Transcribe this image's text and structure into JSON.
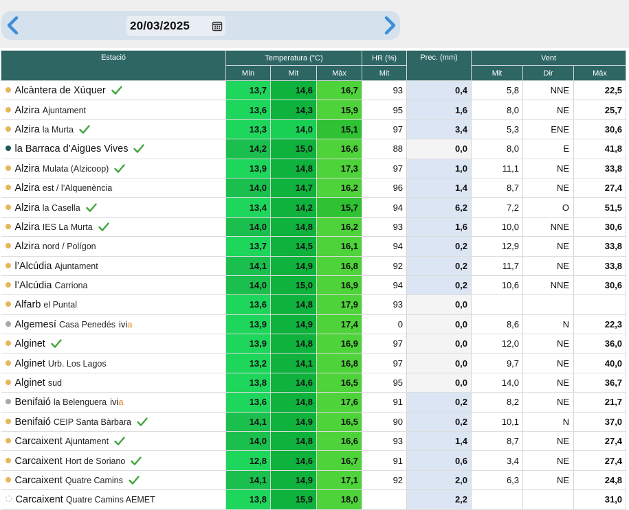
{
  "date": "20/03/2025",
  "headers": {
    "station": "Estació",
    "temperature": "Temperatura (°C)",
    "hr": "HR (%)",
    "prec": "Prec. (mm)",
    "wind": "Vent",
    "min": "Mín",
    "mit": "Mit",
    "max": "Màx",
    "hr_mit": "Mit",
    "wind_mit": "Mit",
    "wind_dir": "Dir",
    "wind_max": "Màx"
  },
  "rows": [
    {
      "name": "Alcàntera de Xúquer",
      "sub": "",
      "dot": "yellow",
      "check": true,
      "ivia": false,
      "tmin": "13,7",
      "tmit": "14,6",
      "tmax": "16,7",
      "hr": "93",
      "prec": "0,4",
      "wmit": "5,8",
      "wdir": "NNE",
      "wmax": "22,5"
    },
    {
      "name": "Alzira",
      "sub": "Ajuntament",
      "dot": "yellow",
      "check": false,
      "ivia": false,
      "tmin": "13,6",
      "tmit": "14,3",
      "tmax": "15,9",
      "hr": "95",
      "prec": "1,6",
      "wmit": "8,0",
      "wdir": "NE",
      "wmax": "25,7"
    },
    {
      "name": "Alzira",
      "sub": "la Murta",
      "dot": "yellow",
      "check": true,
      "ivia": false,
      "tmin": "13,3",
      "tmit": "14,0",
      "tmax": "15,1",
      "hr": "97",
      "prec": "3,4",
      "wmit": "5,3",
      "wdir": "ENE",
      "wmax": "30,6"
    },
    {
      "name": "la Barraca d’Aigües Vives",
      "sub": "",
      "dot": "teal",
      "check": true,
      "ivia": false,
      "tmin": "14,2",
      "tmit": "15,0",
      "tmax": "16,6",
      "hr": "88",
      "prec": "0,0",
      "wmit": "8,0",
      "wdir": "E",
      "wmax": "41,8"
    },
    {
      "name": "Alzira",
      "sub": "Mulata (Alzicoop)",
      "dot": "yellow",
      "check": true,
      "ivia": false,
      "tmin": "13,9",
      "tmit": "14,8",
      "tmax": "17,3",
      "hr": "97",
      "prec": "1,0",
      "wmit": "11,1",
      "wdir": "NE",
      "wmax": "33,8"
    },
    {
      "name": "Alzira",
      "sub": "est / l’Alquenència",
      "dot": "yellow",
      "check": false,
      "ivia": false,
      "tmin": "14,0",
      "tmit": "14,7",
      "tmax": "16,2",
      "hr": "96",
      "prec": "1,4",
      "wmit": "8,7",
      "wdir": "NE",
      "wmax": "27,4"
    },
    {
      "name": "Alzira",
      "sub": "la Casella",
      "dot": "yellow",
      "check": true,
      "ivia": false,
      "tmin": "13,4",
      "tmit": "14,2",
      "tmax": "15,7",
      "hr": "94",
      "prec": "6,2",
      "wmit": "7,2",
      "wdir": "O",
      "wmax": "51,5"
    },
    {
      "name": "Alzira",
      "sub": "IES La Murta",
      "dot": "yellow",
      "check": true,
      "ivia": false,
      "tmin": "14,0",
      "tmit": "14,8",
      "tmax": "16,2",
      "hr": "93",
      "prec": "1,6",
      "wmit": "10,0",
      "wdir": "NNE",
      "wmax": "30,6"
    },
    {
      "name": "Alzira",
      "sub": "nord / Polígon",
      "dot": "yellow",
      "check": false,
      "ivia": false,
      "tmin": "13,7",
      "tmit": "14,5",
      "tmax": "16,1",
      "hr": "94",
      "prec": "0,2",
      "wmit": "12,9",
      "wdir": "NE",
      "wmax": "33,8"
    },
    {
      "name": "l’Alcúdia",
      "sub": "Ajuntament",
      "dot": "yellow",
      "check": false,
      "ivia": false,
      "tmin": "14,1",
      "tmit": "14,9",
      "tmax": "16,8",
      "hr": "92",
      "prec": "0,2",
      "wmit": "11,7",
      "wdir": "NE",
      "wmax": "33,8"
    },
    {
      "name": "l’Alcúdia",
      "sub": "Carriona",
      "dot": "yellow",
      "check": false,
      "ivia": false,
      "tmin": "14,0",
      "tmit": "15,0",
      "tmax": "16,9",
      "hr": "94",
      "prec": "0,2",
      "wmit": "10,6",
      "wdir": "NNE",
      "wmax": "30,6"
    },
    {
      "name": "Alfarb",
      "sub": "el Puntal",
      "dot": "yellow",
      "check": false,
      "ivia": false,
      "tmin": "13,6",
      "tmit": "14,8",
      "tmax": "17,9",
      "hr": "93",
      "prec": "0,0",
      "wmit": "",
      "wdir": "",
      "wmax": ""
    },
    {
      "name": "Algemesí",
      "sub": "Casa Penedés",
      "dot": "grey",
      "check": false,
      "ivia": true,
      "tmin": "13,9",
      "tmit": "14,9",
      "tmax": "17,4",
      "hr": "0",
      "prec": "0,0",
      "wmit": "8,6",
      "wdir": "N",
      "wmax": "22,3"
    },
    {
      "name": "Alginet",
      "sub": "",
      "dot": "yellow",
      "check": true,
      "ivia": false,
      "tmin": "13,9",
      "tmit": "14,8",
      "tmax": "16,9",
      "hr": "97",
      "prec": "0,0",
      "wmit": "12,0",
      "wdir": "NE",
      "wmax": "36,0"
    },
    {
      "name": "Alginet",
      "sub": "Urb. Los Lagos",
      "dot": "yellow",
      "check": false,
      "ivia": false,
      "tmin": "13,2",
      "tmit": "14,1",
      "tmax": "16,8",
      "hr": "97",
      "prec": "0,0",
      "wmit": "9,7",
      "wdir": "NE",
      "wmax": "40,0"
    },
    {
      "name": "Alginet",
      "sub": "sud",
      "dot": "yellow",
      "check": false,
      "ivia": false,
      "tmin": "13,8",
      "tmit": "14,6",
      "tmax": "16,5",
      "hr": "95",
      "prec": "0,0",
      "wmit": "14,0",
      "wdir": "NE",
      "wmax": "36,7"
    },
    {
      "name": "Benifaió",
      "sub": "la Belenguera",
      "dot": "grey",
      "check": false,
      "ivia": true,
      "tmin": "13,6",
      "tmit": "14,8",
      "tmax": "17,6",
      "hr": "91",
      "prec": "0,2",
      "wmit": "8,2",
      "wdir": "NE",
      "wmax": "21,7"
    },
    {
      "name": "Benifaió",
      "sub": "CEIP Santa Bàrbara",
      "dot": "yellow",
      "check": true,
      "ivia": false,
      "tmin": "14,1",
      "tmit": "14,9",
      "tmax": "16,5",
      "hr": "90",
      "prec": "0,2",
      "wmit": "10,1",
      "wdir": "N",
      "wmax": "37,0"
    },
    {
      "name": "Carcaixent",
      "sub": "Ajuntament",
      "dot": "yellow",
      "check": true,
      "ivia": false,
      "tmin": "14,0",
      "tmit": "14,8",
      "tmax": "16,6",
      "hr": "93",
      "prec": "1,4",
      "wmit": "8,7",
      "wdir": "NE",
      "wmax": "27,4"
    },
    {
      "name": "Carcaixent",
      "sub": "Hort de Soriano",
      "dot": "yellow",
      "check": true,
      "ivia": false,
      "tmin": "12,8",
      "tmit": "14,6",
      "tmax": "16,7",
      "hr": "91",
      "prec": "0,6",
      "wmit": "3,4",
      "wdir": "NE",
      "wmax": "27,4"
    },
    {
      "name": "Carcaixent",
      "sub": "Quatre Camins",
      "dot": "yellow",
      "check": true,
      "ivia": false,
      "tmin": "14,1",
      "tmit": "14,9",
      "tmax": "17,1",
      "hr": "92",
      "prec": "2,0",
      "wmit": "6,3",
      "wdir": "NE",
      "wmax": "24,8"
    },
    {
      "name": "Carcaixent",
      "sub": "Quatre Camins AEMET",
      "dot": "empty",
      "check": false,
      "ivia": false,
      "tmin": "13,8",
      "tmit": "15,9",
      "tmax": "18,0",
      "hr": "",
      "prec": "2,2",
      "wmit": "",
      "wdir": "",
      "wmax": "31,0"
    }
  ],
  "ivia_label_i": "ivi",
  "ivia_label_a": "a",
  "colors": {
    "header": "#2e6664",
    "temp_min": "#1fd65c",
    "temp_mit": "#0fb23c",
    "temp_max": "#4fd33a",
    "prec": "#dce5f3"
  },
  "icons": {
    "prev": "chevron-left-icon",
    "next": "chevron-right-icon",
    "calendar": "calendar-icon",
    "check": "check-icon"
  }
}
